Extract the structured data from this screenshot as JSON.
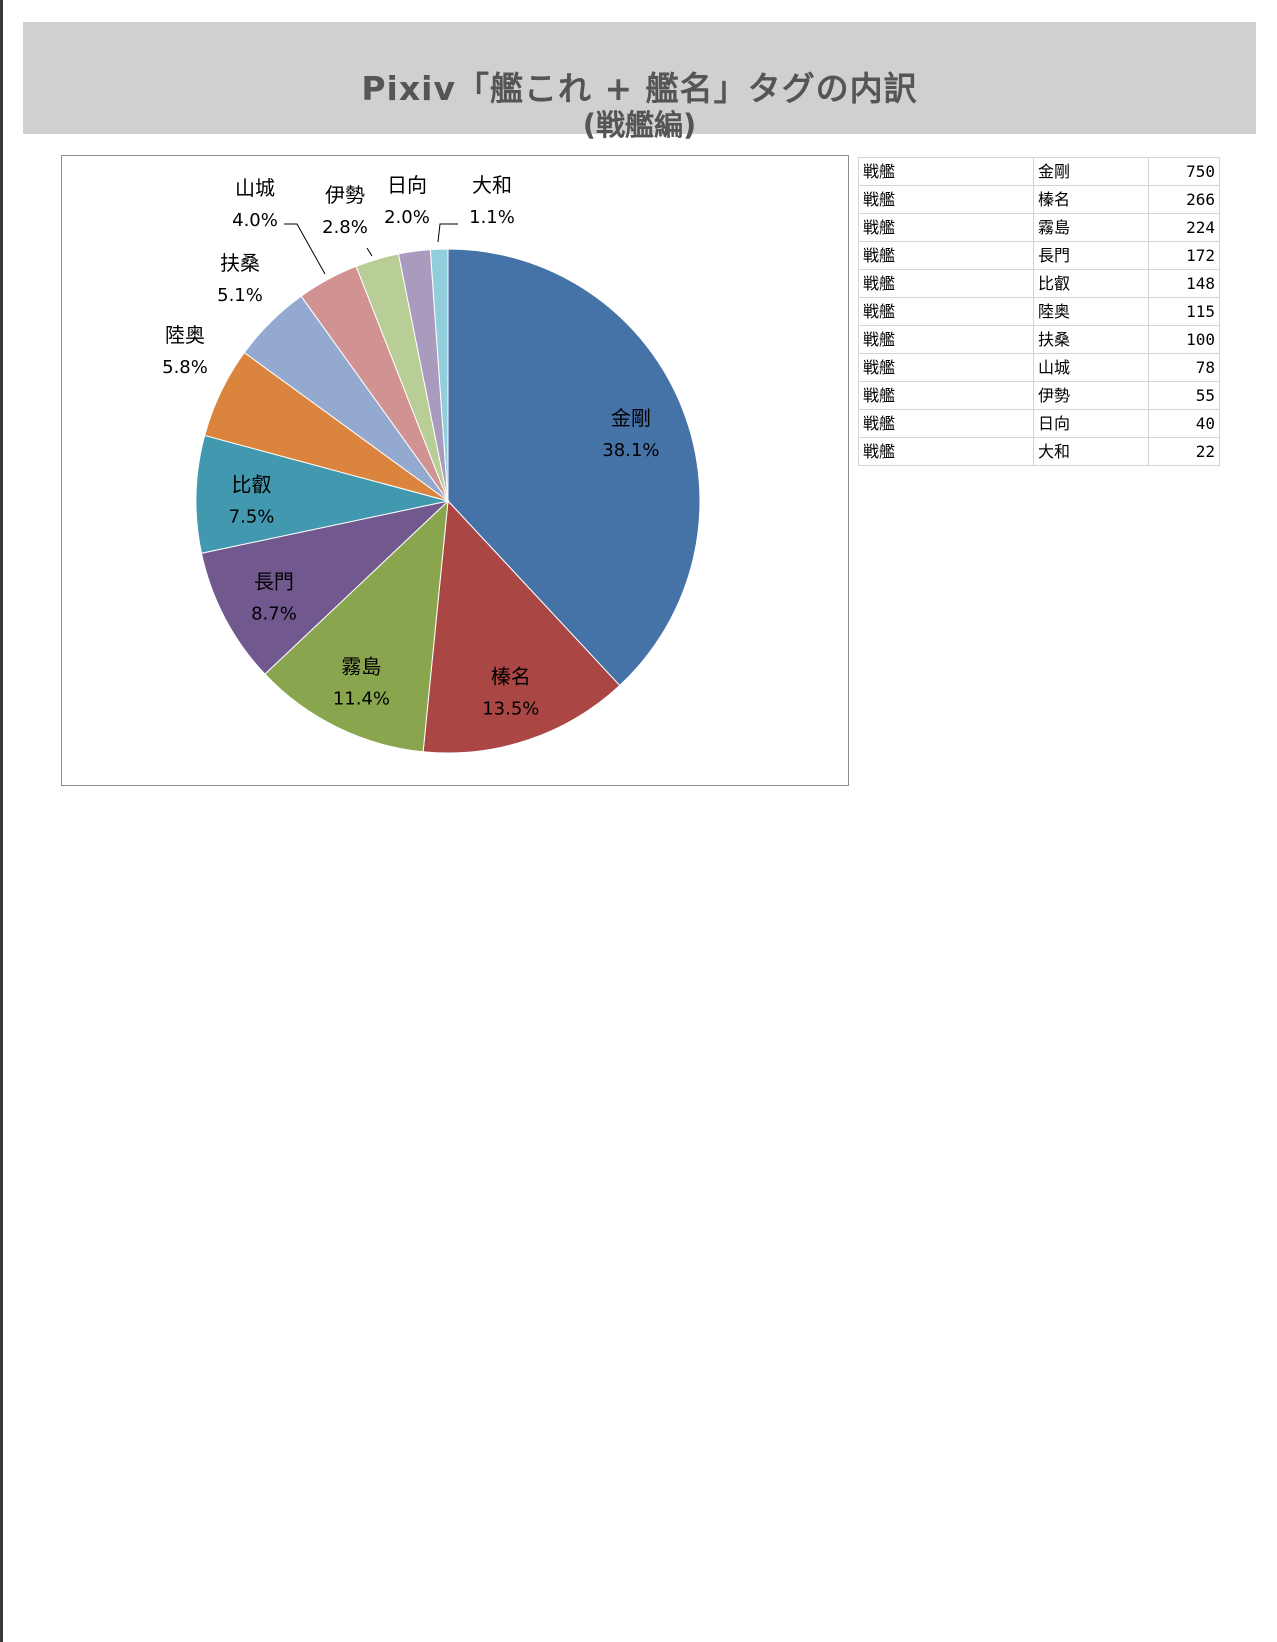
{
  "title": {
    "main": "Pixiv「艦これ + 艦名」タグの内訳",
    "sub": "(戦艦編)"
  },
  "chart_data": {
    "type": "pie",
    "categories": [
      "金剛",
      "榛名",
      "霧島",
      "長門",
      "比叡",
      "陸奥",
      "扶桑",
      "山城",
      "伊勢",
      "日向",
      "大和"
    ],
    "values": [
      750,
      266,
      224,
      172,
      148,
      115,
      100,
      78,
      55,
      40,
      22
    ],
    "percent_labels": [
      "38.1%",
      "13.5%",
      "11.4%",
      "8.7%",
      "7.5%",
      "5.8%",
      "5.1%",
      "4.0%",
      "2.8%",
      "2.0%",
      "1.1%"
    ],
    "colors": [
      "#4572a7",
      "#aa4643",
      "#89a54e",
      "#71588f",
      "#4198af",
      "#db843d",
      "#93a9cf",
      "#d19392",
      "#b9cd96",
      "#a99bbd",
      "#92cddc"
    ],
    "start_angle_deg": 0,
    "direction": "clockwise",
    "legend": "none"
  },
  "table": {
    "rows": [
      [
        "戦艦",
        "金剛",
        "750"
      ],
      [
        "戦艦",
        "榛名",
        "266"
      ],
      [
        "戦艦",
        "霧島",
        "224"
      ],
      [
        "戦艦",
        "長門",
        "172"
      ],
      [
        "戦艦",
        "比叡",
        "148"
      ],
      [
        "戦艦",
        "陸奥",
        "115"
      ],
      [
        "戦艦",
        "扶桑",
        "100"
      ],
      [
        "戦艦",
        "山城",
        "78"
      ],
      [
        "戦艦",
        "伊勢",
        "55"
      ],
      [
        "戦艦",
        "日向",
        "40"
      ],
      [
        "戦艦",
        "大和",
        "22"
      ]
    ]
  }
}
